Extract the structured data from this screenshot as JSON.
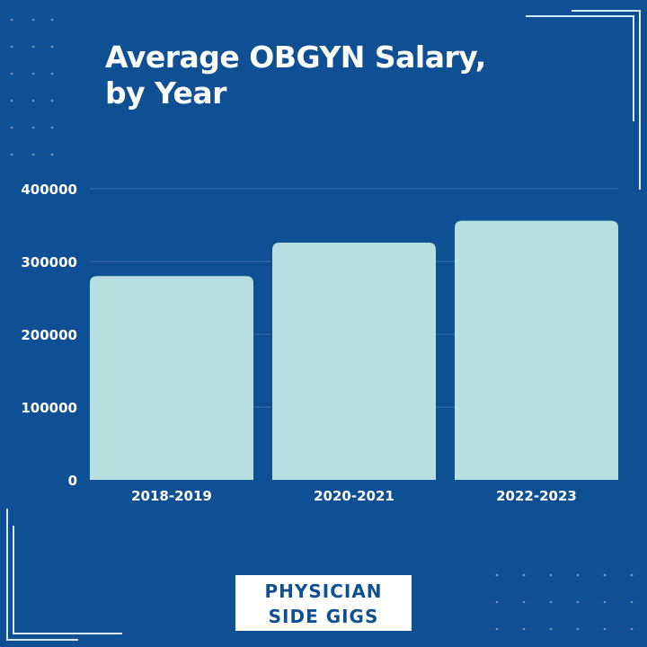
{
  "chart_data": {
    "type": "bar",
    "title": "Average OBGYN Salary, by Year",
    "title_lines": [
      "Average OBGYN Salary,",
      "by Year"
    ],
    "categories": [
      "2018-2019",
      "2020-2021",
      "2022-2023"
    ],
    "values": [
      280000,
      326000,
      356000
    ],
    "xlabel": "",
    "ylabel": "",
    "ylim": [
      0,
      400000
    ],
    "yticks": [
      "0",
      "100000",
      "200000",
      "300000",
      "400000"
    ],
    "grid": true,
    "legend": "none",
    "colors": {
      "background": "#0f4f94",
      "bar": "#b8dfe0",
      "text": "#ffffff",
      "grid": "#3a6fae"
    }
  },
  "logo": {
    "line1": "PHYSICIAN",
    "line2": "SIDE GIGS"
  }
}
